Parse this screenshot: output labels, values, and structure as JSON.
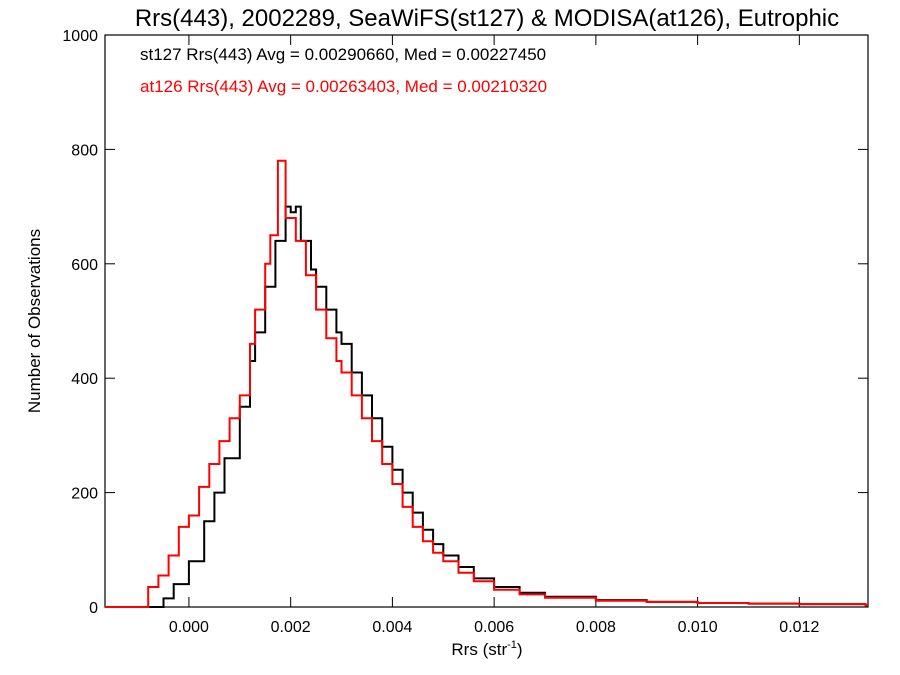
{
  "chart_data": {
    "type": "line",
    "title": "Rrs(443), 2002289, SeaWiFS(st127) & MODISA(at126), Eutrophic",
    "xlabel_main": "Rrs (str",
    "xlabel_sup": "-1",
    "xlabel_end": ")",
    "ylabel": "Number of Observations",
    "xlim": [
      -0.00165,
      0.01335
    ],
    "ylim": [
      0,
      1000
    ],
    "xticks": [
      0.0,
      0.002,
      0.004,
      0.006,
      0.008,
      0.01,
      0.012
    ],
    "xtick_labels": [
      "0.000",
      "0.002",
      "0.004",
      "0.006",
      "0.008",
      "0.010",
      "0.012"
    ],
    "yticks": [
      0,
      200,
      400,
      600,
      800,
      1000
    ],
    "ytick_labels": [
      "0",
      "200",
      "400",
      "600",
      "800",
      "1000"
    ],
    "grid": false,
    "legend_placement": "top-left",
    "series": [
      {
        "name": "st127",
        "color": "#000000",
        "legend": "st127 Rrs(443) Avg = 0.00290660, Med = 0.00227450",
        "points": [
          [
            -0.0007,
            0
          ],
          [
            -0.0005,
            15
          ],
          [
            -0.0003,
            40
          ],
          [
            0.0,
            80
          ],
          [
            0.0003,
            150
          ],
          [
            0.0005,
            200
          ],
          [
            0.0007,
            260
          ],
          [
            0.001,
            350
          ],
          [
            0.0012,
            430
          ],
          [
            0.0013,
            480
          ],
          [
            0.0015,
            560
          ],
          [
            0.0017,
            640
          ],
          [
            0.0019,
            700
          ],
          [
            0.002,
            690
          ],
          [
            0.0021,
            700
          ],
          [
            0.0022,
            640
          ],
          [
            0.0024,
            590
          ],
          [
            0.0025,
            560
          ],
          [
            0.0027,
            520
          ],
          [
            0.0029,
            480
          ],
          [
            0.003,
            460
          ],
          [
            0.0032,
            410
          ],
          [
            0.0034,
            370
          ],
          [
            0.0036,
            330
          ],
          [
            0.0038,
            280
          ],
          [
            0.004,
            240
          ],
          [
            0.0042,
            200
          ],
          [
            0.0044,
            165
          ],
          [
            0.0046,
            135
          ],
          [
            0.0048,
            110
          ],
          [
            0.005,
            90
          ],
          [
            0.0053,
            70
          ],
          [
            0.0056,
            50
          ],
          [
            0.006,
            35
          ],
          [
            0.0065,
            25
          ],
          [
            0.007,
            18
          ],
          [
            0.008,
            12
          ],
          [
            0.009,
            9
          ],
          [
            0.01,
            7
          ],
          [
            0.011,
            6
          ],
          [
            0.012,
            5
          ],
          [
            0.0133,
            3
          ]
        ]
      },
      {
        "name": "at126",
        "color": "#ff0000",
        "legend": "at126 Rrs(443) Avg = 0.00263403, Med = 0.00210320",
        "points": [
          [
            -0.00095,
            0
          ],
          [
            -0.0008,
            35
          ],
          [
            -0.0006,
            55
          ],
          [
            -0.0004,
            90
          ],
          [
            -0.0002,
            140
          ],
          [
            0.0,
            160
          ],
          [
            0.0002,
            210
          ],
          [
            0.0004,
            250
          ],
          [
            0.0006,
            290
          ],
          [
            0.0008,
            330
          ],
          [
            0.001,
            370
          ],
          [
            0.0012,
            460
          ],
          [
            0.0013,
            520
          ],
          [
            0.0015,
            600
          ],
          [
            0.0016,
            650
          ],
          [
            0.00175,
            780
          ],
          [
            0.0019,
            680
          ],
          [
            0.002,
            680
          ],
          [
            0.0021,
            640
          ],
          [
            0.0023,
            580
          ],
          [
            0.0025,
            520
          ],
          [
            0.0027,
            470
          ],
          [
            0.0029,
            430
          ],
          [
            0.003,
            410
          ],
          [
            0.0032,
            370
          ],
          [
            0.0034,
            330
          ],
          [
            0.0036,
            290
          ],
          [
            0.0038,
            250
          ],
          [
            0.004,
            215
          ],
          [
            0.0042,
            175
          ],
          [
            0.0044,
            140
          ],
          [
            0.0046,
            115
          ],
          [
            0.0048,
            95
          ],
          [
            0.005,
            80
          ],
          [
            0.0053,
            60
          ],
          [
            0.0056,
            45
          ],
          [
            0.006,
            30
          ],
          [
            0.0065,
            22
          ],
          [
            0.007,
            16
          ],
          [
            0.008,
            11
          ],
          [
            0.009,
            9
          ],
          [
            0.01,
            7
          ],
          [
            0.011,
            6
          ],
          [
            0.012,
            5
          ],
          [
            0.0133,
            3
          ]
        ]
      }
    ]
  }
}
